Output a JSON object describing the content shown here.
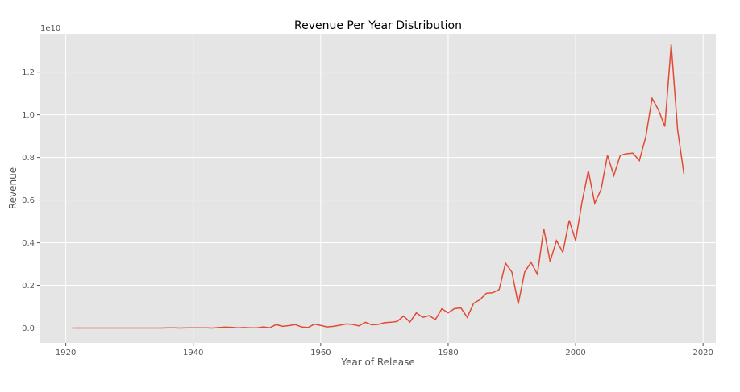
{
  "chart_data": {
    "type": "line",
    "title": "Revenue Per Year Distribution",
    "xlabel": "Year of Release",
    "ylabel": "Revenue",
    "y_offset_label": "1e10",
    "xlim": [
      1916,
      2022
    ],
    "ylim": [
      -0.07,
      1.38
    ],
    "x_ticks": [
      1920,
      1940,
      1960,
      1980,
      2000,
      2020
    ],
    "y_ticks": [
      0.0,
      0.2,
      0.4,
      0.6,
      0.8,
      1.0,
      1.2
    ],
    "y_tick_labels": [
      "0.0",
      "0.2",
      "0.4",
      "0.6",
      "0.8",
      "1.0",
      "1.2"
    ],
    "grid": true,
    "colors": {
      "line": "#e24a33",
      "plot_bg": "#e5e5e5",
      "grid": "#ffffff"
    },
    "series": [
      {
        "x": [
          1921,
          1922,
          1923,
          1924,
          1925,
          1926,
          1927,
          1928,
          1929,
          1930,
          1931,
          1932,
          1933,
          1934,
          1935,
          1936,
          1937,
          1938,
          1939,
          1940,
          1941,
          1942,
          1943,
          1944,
          1945,
          1946,
          1947,
          1948,
          1949,
          1950,
          1951,
          1952,
          1953,
          1954,
          1955,
          1956,
          1957,
          1958,
          1959,
          1960,
          1961,
          1962,
          1963,
          1964,
          1965,
          1966,
          1967,
          1968,
          1969,
          1970,
          1971,
          1972,
          1973,
          1974,
          1975,
          1976,
          1977,
          1978,
          1979,
          1980,
          1981,
          1982,
          1983,
          1984,
          1985,
          1986,
          1987,
          1988,
          1989,
          1990,
          1991,
          1992,
          1993,
          1994,
          1995,
          1996,
          1997,
          1998,
          1999,
          2000,
          2001,
          2002,
          2003,
          2004,
          2005,
          2006,
          2007,
          2008,
          2009,
          2010,
          2011,
          2012,
          2013,
          2014,
          2015,
          2016,
          2017
        ],
        "y": [
          0.0,
          0.0,
          0.0,
          0.0,
          0.0,
          0.0,
          0.0,
          0.0,
          0.0,
          0.0,
          0.0,
          0.0,
          0.0,
          0.0,
          0.0,
          0.001,
          0.001,
          0.0,
          0.001,
          0.001,
          0.001,
          0.001,
          0.0,
          0.002,
          0.004,
          0.003,
          0.001,
          0.002,
          0.001,
          0.001,
          0.005,
          0.001,
          0.016,
          0.008,
          0.011,
          0.016,
          0.005,
          0.002,
          0.018,
          0.012,
          0.005,
          0.008,
          0.013,
          0.019,
          0.017,
          0.01,
          0.027,
          0.015,
          0.017,
          0.025,
          0.027,
          0.031,
          0.056,
          0.028,
          0.071,
          0.05,
          0.058,
          0.04,
          0.09,
          0.071,
          0.091,
          0.094,
          0.05,
          0.116,
          0.133,
          0.163,
          0.165,
          0.18,
          0.304,
          0.262,
          0.113,
          0.262,
          0.308,
          0.252,
          0.466,
          0.312,
          0.41,
          0.355,
          0.505,
          0.41,
          0.59,
          0.737,
          0.585,
          0.65,
          0.81,
          0.715,
          0.81,
          0.818,
          0.82,
          0.785,
          0.895,
          1.077,
          1.023,
          0.945,
          1.33,
          0.93,
          0.722
        ]
      }
    ]
  }
}
